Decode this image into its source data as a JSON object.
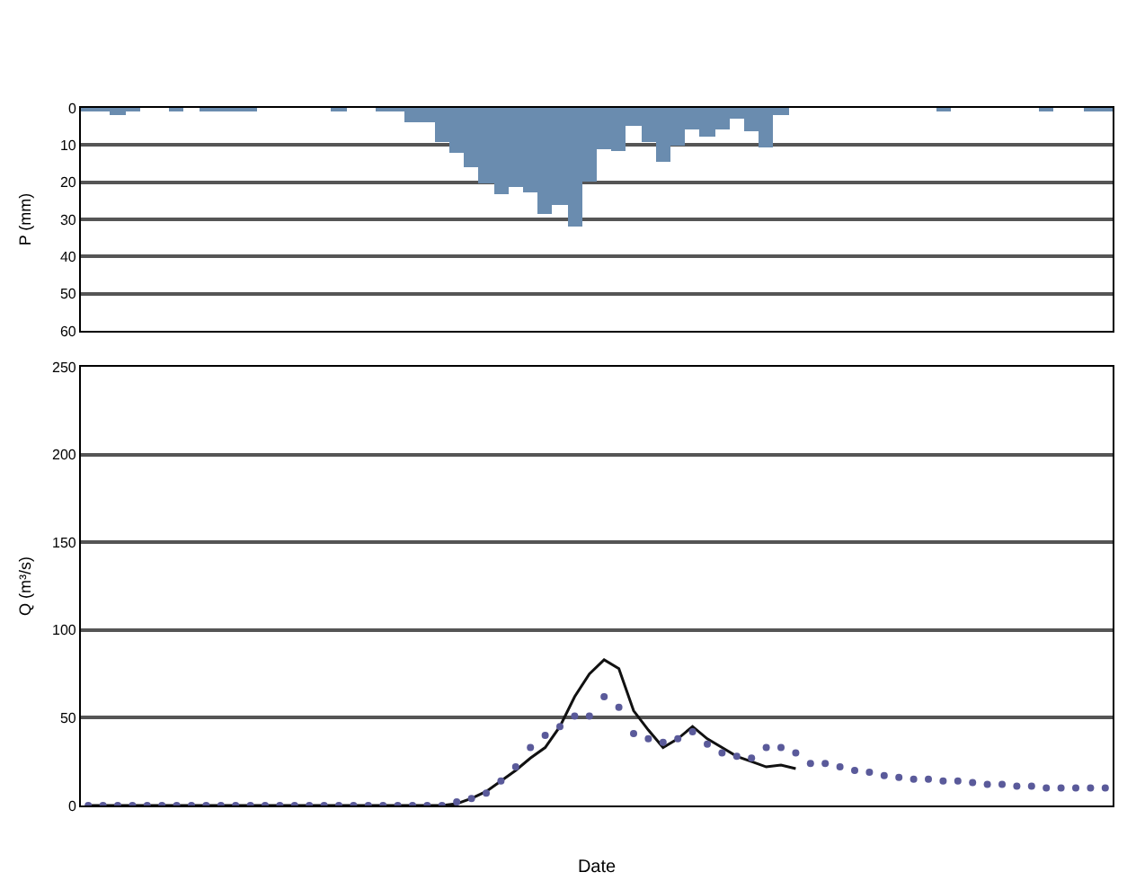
{
  "chart_data": [
    {
      "type": "bar",
      "categories": [
        null,
        null,
        null,
        null,
        null,
        null,
        null,
        null,
        null,
        null,
        null,
        null,
        null,
        null,
        null,
        null,
        null,
        null,
        null,
        null,
        null,
        null,
        null,
        null,
        null,
        null,
        null,
        null,
        null,
        null,
        null,
        null,
        null,
        null,
        null,
        null,
        null,
        null,
        null,
        null,
        null,
        null,
        null,
        null,
        null,
        null,
        null,
        null,
        null,
        null,
        null,
        null,
        null,
        null,
        null,
        null,
        null,
        null,
        null,
        null,
        null,
        null,
        null,
        null,
        null,
        null,
        null,
        null,
        null,
        null
      ],
      "values": [
        1,
        1,
        2,
        1,
        0,
        0,
        0.5,
        0,
        0.5,
        0.5,
        0.5,
        0.5,
        0,
        0,
        0,
        0,
        0,
        0.5,
        0,
        0,
        1,
        1,
        4,
        4,
        9,
        12,
        16,
        20.5,
        23,
        21.5,
        22.5,
        28.5,
        26,
        32,
        20,
        11,
        11.7,
        4.6,
        9,
        14.5,
        10,
        6,
        7.6,
        5.6,
        3,
        6.4,
        10.5,
        2,
        0,
        0,
        0,
        0,
        0,
        0,
        0,
        0,
        0,
        0,
        0.5,
        0,
        0,
        0,
        0,
        0,
        0,
        0.5,
        0,
        0,
        0.5,
        0.5
      ],
      "color": "#6a8caf",
      "ylabel": "P (mm)",
      "ylim": [
        60,
        0
      ],
      "yticks": [
        0,
        10,
        20,
        30,
        40,
        50,
        60
      ],
      "grid": true,
      "tick_labels": "y"
    },
    {
      "type": "line",
      "categories": [
        null,
        null,
        null,
        null,
        null,
        null,
        null,
        null,
        null,
        null,
        null,
        null,
        null,
        null,
        null,
        null,
        null,
        null,
        null,
        null,
        null,
        null,
        null,
        null,
        null,
        null,
        null,
        null,
        null,
        null,
        null,
        null,
        null,
        null,
        null,
        null,
        null,
        null,
        null,
        null,
        null,
        null,
        null,
        null,
        null,
        null,
        null,
        null,
        null,
        null,
        null,
        null,
        null,
        null,
        null,
        null,
        null,
        null,
        null,
        null,
        null,
        null,
        null,
        null,
        null,
        null,
        null,
        null,
        null,
        null
      ],
      "series": [
        {
          "type": "line",
          "color": "#111111",
          "values": [
            0,
            0,
            0,
            0,
            0,
            0,
            0,
            0,
            0,
            0,
            0,
            0,
            0,
            0,
            0,
            0,
            0,
            0,
            0,
            0,
            0,
            0,
            0,
            0,
            0,
            1,
            4,
            8,
            14,
            20,
            27,
            33,
            45,
            62,
            75,
            83,
            78,
            54,
            43,
            33,
            38,
            45,
            38,
            33,
            28,
            25,
            22,
            23,
            21,
            null,
            null,
            null,
            null,
            null,
            null,
            null,
            null,
            null,
            null,
            null,
            null,
            null,
            null,
            null,
            null,
            null,
            null,
            null,
            null,
            null
          ]
        },
        {
          "type": "scatter",
          "marker": "circle",
          "color": "#5a5a9a",
          "values": [
            0,
            0,
            0,
            0,
            0,
            0,
            0,
            0,
            0,
            0,
            0,
            0,
            0,
            0,
            0,
            0,
            0,
            0,
            0,
            0,
            0,
            0,
            0,
            0,
            0,
            2,
            4,
            7,
            14,
            22,
            33,
            40,
            45,
            51,
            51,
            62,
            56,
            41,
            38,
            36,
            38,
            42,
            35,
            30,
            28,
            27,
            33,
            33,
            30,
            24,
            24,
            22,
            20,
            19,
            17,
            16,
            15,
            15,
            14,
            14,
            13,
            12,
            12,
            11,
            11,
            10,
            10,
            10,
            10,
            10
          ]
        }
      ],
      "xlabel": "Date",
      "ylabel": "Q (m³/s)",
      "ylim": [
        0,
        250
      ],
      "yticks": [
        0,
        50,
        100,
        150,
        200,
        250
      ],
      "grid": true
    }
  ]
}
